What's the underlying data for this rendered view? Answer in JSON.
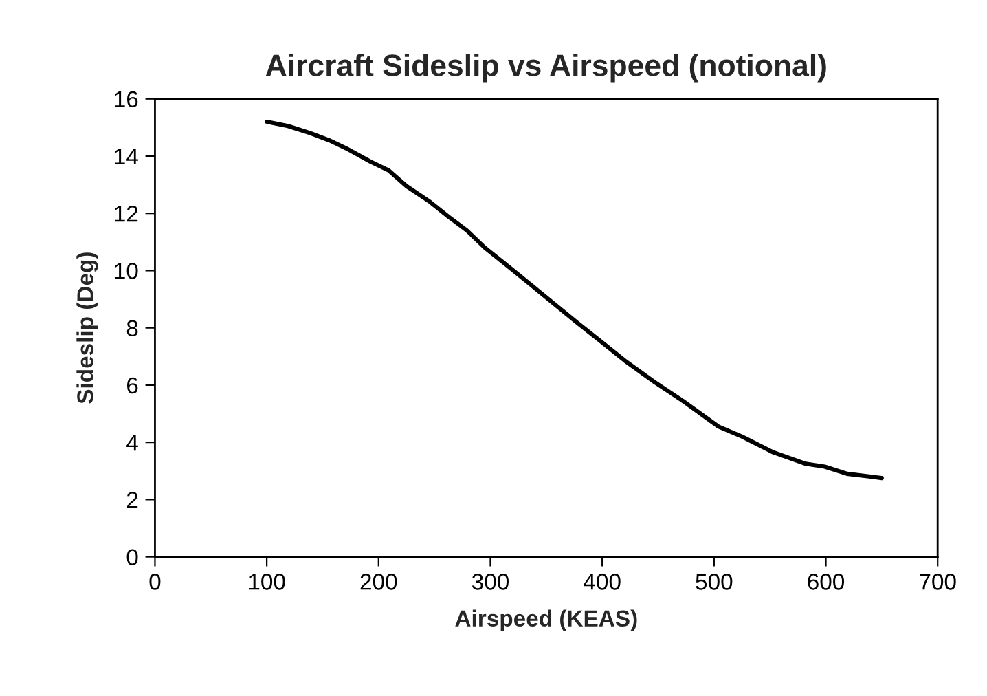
{
  "chart_data": {
    "type": "line",
    "title": "Aircraft Sideslip vs Airspeed (notional)",
    "xlabel": "Airspeed (KEAS)",
    "ylabel": "Sideslip (Deg)",
    "xlim": [
      0,
      700
    ],
    "xticks": [
      0,
      100,
      200,
      300,
      400,
      500,
      600,
      700
    ],
    "ylim": [
      0,
      16
    ],
    "yticks": [
      0,
      2,
      4,
      6,
      8,
      10,
      12,
      14,
      16
    ],
    "grid": false,
    "marker": "none",
    "line_style": "solid",
    "series": [
      {
        "color": "#000000",
        "x": [
          100,
          119,
          139,
          156,
          172,
          193,
          209,
          225,
          246,
          262,
          279,
          295,
          311,
          330,
          352,
          377,
          398,
          422,
          447,
          472,
          504,
          525,
          553,
          582,
          599,
          619,
          640,
          650
        ],
        "values": [
          15.2,
          15.05,
          14.8,
          14.55,
          14.25,
          13.8,
          13.5,
          12.95,
          12.4,
          11.9,
          11.4,
          10.8,
          10.3,
          9.7,
          9.0,
          8.2,
          7.55,
          6.8,
          6.1,
          5.45,
          4.55,
          4.2,
          3.65,
          3.25,
          3.15,
          2.9,
          2.8,
          2.75
        ]
      }
    ]
  }
}
